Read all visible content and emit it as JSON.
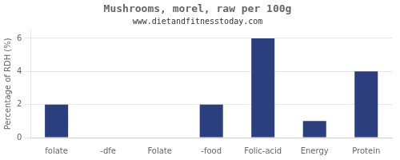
{
  "chart_data": {
    "type": "bar",
    "title": "Mushrooms, morel, raw per 100g",
    "subtitle": "www.dietandfitnesstoday.com",
    "categories": [
      "folate",
      "-dfe",
      "Folate",
      "-food",
      "Folic-acid",
      "Energy",
      "Protein"
    ],
    "values": [
      2.0,
      0.0,
      0.0,
      2.0,
      6.0,
      1.0,
      4.0
    ],
    "color": "#2b3f7e",
    "ylabel": "Percentage of RDH (%)",
    "ylim": [
      0,
      6.5
    ],
    "yticks": [
      0,
      2,
      4,
      6
    ],
    "grid": true
  }
}
